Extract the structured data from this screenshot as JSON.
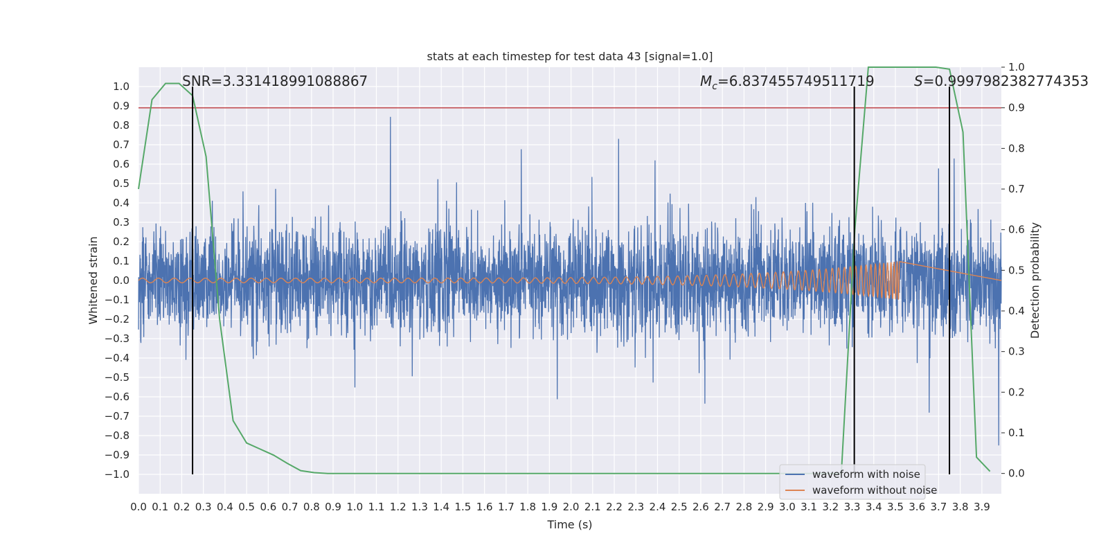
{
  "chart_data": {
    "type": "line",
    "title": "stats at each timestep for test data 43 [signal=1.0]",
    "xlabel": "Time (s)",
    "ylabel": "Whitened strain",
    "y2label": "Detection probability",
    "xlim": [
      0.0,
      3.99
    ],
    "ylim": [
      -1.1,
      1.1
    ],
    "y2lim": [
      -0.05,
      1.0
    ],
    "x_ticks": [
      "0.0",
      "0.1",
      "0.2",
      "0.3",
      "0.4",
      "0.5",
      "0.6",
      "0.7",
      "0.8",
      "0.9",
      "1.0",
      "1.1",
      "1.2",
      "1.3",
      "1.4",
      "1.5",
      "1.6",
      "1.7",
      "1.8",
      "1.9",
      "2.0",
      "2.1",
      "2.2",
      "2.3",
      "2.4",
      "2.5",
      "2.6",
      "2.7",
      "2.8",
      "2.9",
      "3.0",
      "3.1",
      "3.2",
      "3.3",
      "3.4",
      "3.5",
      "3.6",
      "3.7",
      "3.8",
      "3.9"
    ],
    "y_ticks": [
      "1.0",
      "0.9",
      "0.8",
      "0.7",
      "0.6",
      "0.5",
      "0.4",
      "0.3",
      "0.2",
      "0.1",
      "0.0",
      "−0.1",
      "−0.2",
      "−0.3",
      "−0.4",
      "−0.5",
      "−0.6",
      "−0.7",
      "−0.8",
      "−0.9",
      "−1.0"
    ],
    "y2_ticks": [
      "1.0",
      "0.9",
      "0.8",
      "0.7",
      "0.6",
      "0.5",
      "0.4",
      "0.3",
      "0.2",
      "0.1",
      "0.0"
    ],
    "grid": true,
    "legend_position": "bottom-right",
    "threshold_line": {
      "axis": "y2",
      "value": 0.9,
      "color": "#c44e52"
    },
    "vertical_lines": [
      0.25,
      3.31,
      3.75
    ],
    "annotations": {
      "snr": "SNR=3.331418991088867",
      "mc_symbol": "M",
      "mc_subscript": "c",
      "mc_value": "=6.837455749511719",
      "s_symbol": "S",
      "s_value": "=0.9997982382774353"
    },
    "series": [
      {
        "name": "waveform with noise",
        "color": "#4c72b0",
        "envelope": 0.72,
        "seed": 43
      },
      {
        "name": "waveform without noise",
        "color": "#dd8452",
        "chirp_start_amp": 0.012,
        "chirp_end_amp": 0.1,
        "chirp_end_time": 3.52
      },
      {
        "name": "detection probability",
        "color": "#55a868",
        "axis": "y2",
        "x": [
          0.0,
          0.0625,
          0.125,
          0.1875,
          0.25,
          0.3125,
          0.375,
          0.4375,
          0.5,
          0.5625,
          0.625,
          0.6875,
          0.75,
          0.8125,
          0.875,
          0.9375,
          1.0,
          3.25,
          3.3125,
          3.375,
          3.4375,
          3.5,
          3.5625,
          3.625,
          3.6875,
          3.75,
          3.8125,
          3.875,
          3.9375
        ],
        "values": [
          0.7,
          0.92,
          0.96,
          0.96,
          0.93,
          0.78,
          0.38,
          0.13,
          0.075,
          0.06,
          0.045,
          0.025,
          0.007,
          0.002,
          0.0,
          0.0,
          0.0,
          0.0,
          0.6,
          1.0,
          1.0,
          1.0,
          1.0,
          1.0,
          1.0,
          0.995,
          0.84,
          0.04,
          0.005
        ]
      }
    ]
  }
}
